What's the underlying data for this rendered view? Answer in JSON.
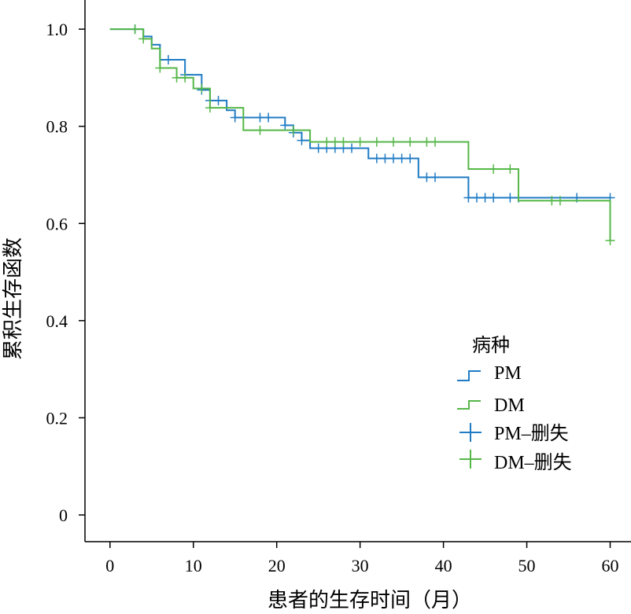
{
  "chart_data": {
    "type": "line",
    "subtype": "kaplan-meier step",
    "xlabel": "患者的生存时间（月）",
    "ylabel": "累积生存函数",
    "xlim": [
      -3,
      62.5
    ],
    "ylim": [
      -0.055,
      1.06
    ],
    "xticks": [
      "0",
      "10",
      "20",
      "30",
      "40",
      "50",
      "60"
    ],
    "yticks": [
      "0",
      "0.2",
      "0.4",
      "0.6",
      "0.8",
      "1.0"
    ],
    "grid": false,
    "legend": {
      "title": "病种",
      "position": "bottom-right",
      "items": [
        "PM",
        "DM",
        "PM–删失",
        "DM–删失"
      ]
    },
    "series": [
      {
        "name": "PM",
        "color": "#1f7bc4",
        "steps": [
          [
            0,
            1.0
          ],
          [
            4,
            0.985
          ],
          [
            5,
            0.968
          ],
          [
            6,
            0.937
          ],
          [
            9,
            0.906
          ],
          [
            11,
            0.875
          ],
          [
            12,
            0.853
          ],
          [
            14,
            0.833
          ],
          [
            15,
            0.818
          ],
          [
            21,
            0.802
          ],
          [
            22,
            0.787
          ],
          [
            23,
            0.771
          ],
          [
            24,
            0.755
          ],
          [
            31,
            0.734
          ],
          [
            37,
            0.695
          ],
          [
            43,
            0.653
          ],
          [
            60,
            0.653
          ]
        ],
        "censored": [
          [
            3,
            1.0
          ],
          [
            7,
            0.937
          ],
          [
            9,
            0.906
          ],
          [
            11,
            0.875
          ],
          [
            12,
            0.853
          ],
          [
            13,
            0.853
          ],
          [
            15,
            0.818
          ],
          [
            16,
            0.818
          ],
          [
            18,
            0.818
          ],
          [
            19,
            0.818
          ],
          [
            21,
            0.802
          ],
          [
            22,
            0.787
          ],
          [
            23,
            0.771
          ],
          [
            25,
            0.755
          ],
          [
            26,
            0.755
          ],
          [
            27,
            0.755
          ],
          [
            28,
            0.755
          ],
          [
            29,
            0.755
          ],
          [
            32,
            0.734
          ],
          [
            33,
            0.734
          ],
          [
            34,
            0.734
          ],
          [
            35,
            0.734
          ],
          [
            36,
            0.734
          ],
          [
            38,
            0.695
          ],
          [
            39,
            0.695
          ],
          [
            43,
            0.653
          ],
          [
            44,
            0.653
          ],
          [
            45,
            0.653
          ],
          [
            46,
            0.653
          ],
          [
            48,
            0.653
          ],
          [
            49,
            0.653
          ],
          [
            56,
            0.653
          ],
          [
            60,
            0.653
          ]
        ]
      },
      {
        "name": "DM",
        "color": "#55b748",
        "steps": [
          [
            0,
            1.0
          ],
          [
            4,
            0.98
          ],
          [
            5,
            0.96
          ],
          [
            6,
            0.92
          ],
          [
            8,
            0.9
          ],
          [
            10,
            0.878
          ],
          [
            12,
            0.838
          ],
          [
            16,
            0.792
          ],
          [
            24,
            0.768
          ],
          [
            43,
            0.712
          ],
          [
            49,
            0.647
          ],
          [
            60,
            0.565
          ]
        ],
        "censored": [
          [
            3,
            1.0
          ],
          [
            4,
            0.98
          ],
          [
            6,
            0.92
          ],
          [
            8,
            0.9
          ],
          [
            9,
            0.9
          ],
          [
            11,
            0.878
          ],
          [
            12,
            0.838
          ],
          [
            18,
            0.792
          ],
          [
            22,
            0.792
          ],
          [
            26,
            0.768
          ],
          [
            27,
            0.768
          ],
          [
            28,
            0.768
          ],
          [
            30,
            0.768
          ],
          [
            32,
            0.768
          ],
          [
            34,
            0.768
          ],
          [
            36,
            0.768
          ],
          [
            38,
            0.768
          ],
          [
            39,
            0.768
          ],
          [
            46,
            0.712
          ],
          [
            48,
            0.712
          ],
          [
            53,
            0.647
          ],
          [
            54,
            0.647
          ],
          [
            60,
            0.565
          ]
        ]
      }
    ]
  }
}
